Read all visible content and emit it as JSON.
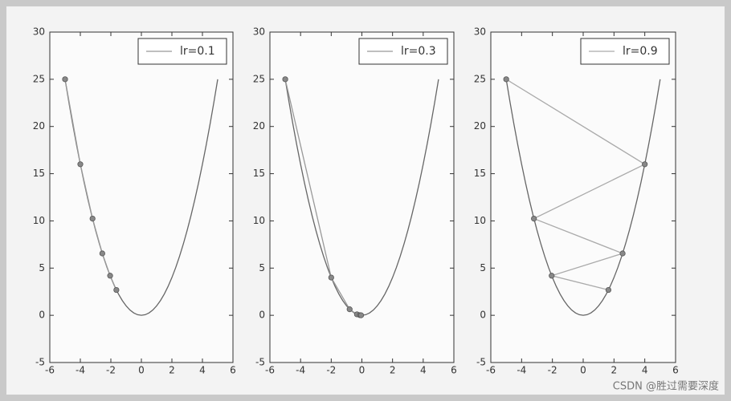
{
  "chart_data": [
    {
      "type": "line",
      "legend": "upper right",
      "xlim": [
        -6,
        6
      ],
      "xticks": [
        -6,
        -4,
        -2,
        0,
        2,
        4,
        6
      ],
      "ylim": [
        -5,
        30
      ],
      "yticks": [
        -5,
        0,
        5,
        10,
        15,
        20,
        25,
        30
      ],
      "series": [
        {
          "color": "#666666",
          "markers": false,
          "x": [
            -5,
            -4.75,
            -4.5,
            -4.25,
            -4,
            -3.75,
            -3.5,
            -3.25,
            -3,
            -2.75,
            -2.5,
            -2.25,
            -2,
            -1.75,
            -1.5,
            -1.25,
            -1,
            -0.75,
            -0.5,
            -0.25,
            0,
            0.25,
            0.5,
            0.75,
            1,
            1.25,
            1.5,
            1.75,
            2,
            2.25,
            2.5,
            2.75,
            3,
            3.25,
            3.5,
            3.75,
            4,
            4.25,
            4.5,
            4.75,
            5
          ],
          "values": [
            25,
            22.5625,
            20.25,
            18.0625,
            16,
            14.0625,
            12.25,
            10.5625,
            9,
            7.5625,
            6.25,
            5.0625,
            4,
            3.0625,
            2.25,
            1.5625,
            1,
            0.5625,
            0.25,
            0.0625,
            0,
            0.0625,
            0.25,
            0.5625,
            1,
            1.5625,
            2.25,
            3.0625,
            4,
            5.0625,
            6.25,
            7.5625,
            9,
            10.5625,
            12.25,
            14.0625,
            16,
            18.0625,
            20.25,
            22.5625,
            25
          ]
        },
        {
          "name": "lr=0.1",
          "color": "#999999",
          "markers": true,
          "x": [
            -5,
            -4,
            -3.2,
            -2.56,
            -2.048,
            -1.6384
          ],
          "values": [
            25,
            16,
            10.24,
            6.5536,
            4.194304,
            2.68435456
          ]
        }
      ]
    },
    {
      "type": "line",
      "legend": "upper right",
      "xlim": [
        -6,
        6
      ],
      "xticks": [
        -6,
        -4,
        -2,
        0,
        2,
        4,
        6
      ],
      "ylim": [
        -5,
        30
      ],
      "yticks": [
        -5,
        0,
        5,
        10,
        15,
        20,
        25,
        30
      ],
      "series": [
        {
          "color": "#666666",
          "markers": false,
          "x": [
            -5,
            -4.75,
            -4.5,
            -4.25,
            -4,
            -3.75,
            -3.5,
            -3.25,
            -3,
            -2.75,
            -2.5,
            -2.25,
            -2,
            -1.75,
            -1.5,
            -1.25,
            -1,
            -0.75,
            -0.5,
            -0.25,
            0,
            0.25,
            0.5,
            0.75,
            1,
            1.25,
            1.5,
            1.75,
            2,
            2.25,
            2.5,
            2.75,
            3,
            3.25,
            3.5,
            3.75,
            4,
            4.25,
            4.5,
            4.75,
            5
          ],
          "values": [
            25,
            22.5625,
            20.25,
            18.0625,
            16,
            14.0625,
            12.25,
            10.5625,
            9,
            7.5625,
            6.25,
            5.0625,
            4,
            3.0625,
            2.25,
            1.5625,
            1,
            0.5625,
            0.25,
            0.0625,
            0,
            0.0625,
            0.25,
            0.5625,
            1,
            1.5625,
            2.25,
            3.0625,
            4,
            5.0625,
            6.25,
            7.5625,
            9,
            10.5625,
            12.25,
            14.0625,
            16,
            18.0625,
            20.25,
            22.5625,
            25
          ]
        },
        {
          "name": "lr=0.3",
          "color": "#999999",
          "markers": true,
          "x": [
            -5,
            -2,
            -0.8,
            -0.32,
            -0.128,
            -0.0512
          ],
          "values": [
            25,
            4,
            0.64,
            0.1024,
            0.016384,
            0.00262144
          ]
        }
      ]
    },
    {
      "type": "line",
      "legend": "upper right",
      "xlim": [
        -6,
        6
      ],
      "xticks": [
        -6,
        -4,
        -2,
        0,
        2,
        4,
        6
      ],
      "ylim": [
        -5,
        30
      ],
      "yticks": [
        -5,
        0,
        5,
        10,
        15,
        20,
        25,
        30
      ],
      "series": [
        {
          "color": "#666666",
          "markers": false,
          "x": [
            -5,
            -4.75,
            -4.5,
            -4.25,
            -4,
            -3.75,
            -3.5,
            -3.25,
            -3,
            -2.75,
            -2.5,
            -2.25,
            -2,
            -1.75,
            -1.5,
            -1.25,
            -1,
            -0.75,
            -0.5,
            -0.25,
            0,
            0.25,
            0.5,
            0.75,
            1,
            1.25,
            1.5,
            1.75,
            2,
            2.25,
            2.5,
            2.75,
            3,
            3.25,
            3.5,
            3.75,
            4,
            4.25,
            4.5,
            4.75,
            5
          ],
          "values": [
            25,
            22.5625,
            20.25,
            18.0625,
            16,
            14.0625,
            12.25,
            10.5625,
            9,
            7.5625,
            6.25,
            5.0625,
            4,
            3.0625,
            2.25,
            1.5625,
            1,
            0.5625,
            0.25,
            0.0625,
            0,
            0.0625,
            0.25,
            0.5625,
            1,
            1.5625,
            2.25,
            3.0625,
            4,
            5.0625,
            6.25,
            7.5625,
            9,
            10.5625,
            12.25,
            14.0625,
            16,
            18.0625,
            20.25,
            22.5625,
            25
          ]
        },
        {
          "name": "lr=0.9",
          "color": "#aaaaaa",
          "markers": true,
          "x": [
            -5,
            4,
            -3.2,
            2.56,
            -2.048,
            1.6384
          ],
          "values": [
            25,
            16,
            10.24,
            6.5536,
            4.194304,
            2.68435456
          ]
        }
      ]
    }
  ],
  "watermark": "CSDN @胜过需要深度"
}
